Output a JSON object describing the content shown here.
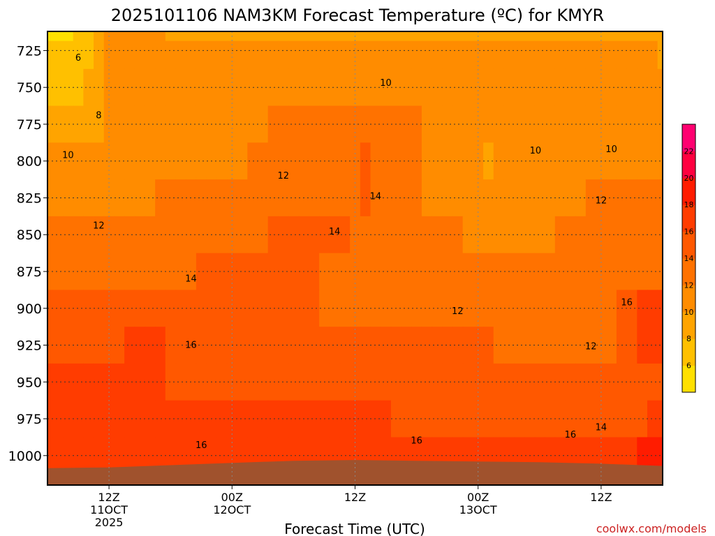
{
  "chart_data": {
    "type": "heatmap",
    "title": "2025101106 NAM3KM Forecast Temperature (ºC) for KMYR",
    "xlabel": "Forecast Time (UTC)",
    "ylabel": "",
    "credit": "coolwx.com/models",
    "y_axis": {
      "unit": "hPa",
      "ticks": [
        725,
        750,
        775,
        800,
        825,
        850,
        875,
        900,
        925,
        950,
        975,
        1000
      ],
      "tick_labels": [
        "725",
        "750",
        "775",
        "800",
        "825",
        "850",
        "875",
        "900",
        "925",
        "950",
        "975",
        "1000"
      ],
      "range": [
        712,
        1020
      ]
    },
    "x_axis": {
      "unit": "hours since 2025-10-11 06Z",
      "range": [
        0,
        60
      ],
      "ticks": [
        {
          "h": 6,
          "lines": [
            "12Z",
            "11OCT",
            "2025"
          ]
        },
        {
          "h": 18,
          "lines": [
            "00Z",
            "12OCT"
          ]
        },
        {
          "h": 30,
          "lines": [
            "12Z"
          ]
        },
        {
          "h": 42,
          "lines": [
            "00Z",
            "13OCT"
          ]
        },
        {
          "h": 54,
          "lines": [
            "12Z"
          ]
        }
      ]
    },
    "grid": true,
    "color_scale": {
      "levels": [
        4,
        6,
        8,
        10,
        12,
        14,
        16,
        18,
        20,
        22,
        24
      ],
      "tick_labels": [
        "6",
        "8",
        "10",
        "12",
        "14",
        "16",
        "18",
        "20",
        "22"
      ],
      "colors": [
        "#ffe000",
        "#ffc000",
        "#ffa400",
        "#ff8c00",
        "#ff7200",
        "#ff5800",
        "#ff3c00",
        "#ff1c00",
        "#ff0040",
        "#ff0070"
      ]
    },
    "values_note": "",
    "rows": [
      {
        "p": 712,
        "t": [
          5,
          5,
          5,
          6,
          7,
          9,
          10,
          10,
          10,
          10,
          10,
          10,
          9,
          9,
          9,
          9,
          9,
          9,
          9,
          9,
          9,
          9,
          9,
          9,
          9,
          9,
          9,
          9,
          9,
          9,
          9,
          9,
          9,
          9,
          9,
          9,
          9,
          9,
          9,
          9,
          9,
          9,
          9,
          9,
          9,
          9,
          9,
          9,
          9,
          9,
          9,
          9,
          9,
          9,
          9,
          9,
          9,
          9,
          9,
          9,
          8
        ]
      },
      {
        "p": 725,
        "t": [
          6,
          6,
          6,
          6,
          7,
          9,
          10,
          10,
          10,
          10,
          10,
          10,
          10,
          10,
          10,
          10,
          10,
          10,
          10,
          10,
          10,
          10,
          10,
          10,
          10,
          10,
          10,
          10,
          10,
          10,
          10,
          10,
          10,
          10,
          10,
          10,
          10,
          10,
          10,
          10,
          10,
          10,
          10,
          10,
          10,
          10,
          10,
          10,
          10,
          10,
          10,
          10,
          10,
          10,
          10,
          10,
          10,
          10,
          10,
          10,
          9
        ]
      },
      {
        "p": 750,
        "t": [
          7,
          7,
          7,
          7,
          8,
          9,
          10,
          10,
          10,
          10,
          10,
          10,
          10,
          10,
          10,
          10,
          10,
          10,
          10,
          10,
          10,
          11,
          11,
          11,
          11,
          11,
          11,
          11,
          11,
          11,
          11,
          11,
          11,
          11,
          11,
          11,
          10,
          10,
          10,
          10,
          10,
          10,
          10,
          10,
          10,
          10,
          10,
          10,
          10,
          10,
          10,
          10,
          10,
          10,
          10,
          10,
          10,
          10,
          10,
          10,
          10
        ]
      },
      {
        "p": 775,
        "t": [
          9,
          9,
          9,
          9,
          9,
          9,
          10,
          10,
          10,
          11,
          11,
          11,
          11,
          11,
          11,
          11,
          11,
          11,
          11,
          11,
          11,
          11,
          12,
          12,
          12,
          12,
          12,
          12,
          12,
          12,
          12,
          13,
          12,
          12,
          12,
          12,
          12,
          11,
          11,
          11,
          11,
          11,
          10,
          10,
          10,
          10,
          10,
          10,
          11,
          11,
          11,
          11,
          11,
          11,
          11,
          11,
          11,
          11,
          11,
          11,
          11
        ]
      },
      {
        "p": 800,
        "t": [
          10,
          10,
          10,
          10,
          10,
          10,
          10,
          10,
          10,
          11,
          11,
          11,
          11,
          11,
          11,
          11,
          11,
          11,
          11,
          11,
          12,
          12,
          12,
          12,
          12,
          12,
          12,
          12,
          12,
          12,
          13,
          14,
          13,
          13,
          12,
          12,
          12,
          11,
          11,
          11,
          11,
          11,
          10,
          9,
          10,
          10,
          10,
          11,
          11,
          11,
          11,
          11,
          11,
          11,
          10,
          11,
          11,
          11,
          11,
          11,
          11
        ]
      },
      {
        "p": 825,
        "t": [
          11,
          11,
          11,
          11,
          11,
          11,
          11,
          11,
          11,
          11,
          11,
          12,
          12,
          12,
          12,
          12,
          12,
          12,
          12,
          12,
          12,
          12,
          13,
          13,
          13,
          13,
          13,
          13,
          13,
          13,
          13,
          14,
          13,
          13,
          12,
          12,
          12,
          11,
          11,
          11,
          11,
          11,
          11,
          11,
          11,
          11,
          11,
          11,
          11,
          11,
          11,
          11,
          11,
          12,
          12,
          12,
          12,
          12,
          12,
          12,
          12
        ]
      },
      {
        "p": 850,
        "t": [
          12,
          12,
          12,
          12,
          12,
          12,
          12,
          12,
          12,
          12,
          12,
          12,
          12,
          13,
          13,
          13,
          13,
          13,
          13,
          13,
          13,
          13,
          14,
          14,
          14,
          14,
          14,
          14,
          14,
          14,
          13,
          13,
          13,
          13,
          13,
          13,
          12,
          12,
          12,
          12,
          12,
          11,
          11,
          11,
          11,
          11,
          11,
          11,
          11,
          11,
          12,
          12,
          12,
          12,
          12,
          12,
          12,
          12,
          12,
          12,
          12
        ]
      },
      {
        "p": 875,
        "t": [
          12,
          12,
          12,
          12,
          13,
          13,
          13,
          13,
          13,
          13,
          13,
          13,
          13,
          13,
          13,
          14,
          14,
          14,
          14,
          14,
          14,
          14,
          14,
          14,
          14,
          14,
          14,
          13,
          13,
          13,
          13,
          13,
          13,
          13,
          13,
          13,
          13,
          13,
          13,
          13,
          12,
          12,
          12,
          12,
          12,
          12,
          12,
          12,
          12,
          12,
          12,
          12,
          12,
          12,
          12,
          12,
          12,
          12,
          12,
          12,
          12
        ]
      },
      {
        "p": 900,
        "t": [
          14,
          14,
          14,
          14,
          14,
          14,
          14,
          14,
          14,
          14,
          14,
          14,
          14,
          14,
          14,
          14,
          14,
          14,
          14,
          14,
          14,
          14,
          14,
          14,
          14,
          14,
          14,
          13,
          13,
          13,
          13,
          13,
          13,
          13,
          13,
          13,
          13,
          13,
          13,
          13,
          12,
          12,
          12,
          12,
          12,
          12,
          12,
          12,
          12,
          12,
          12,
          12,
          12,
          12,
          12,
          12,
          14,
          15,
          16,
          16,
          16
        ]
      },
      {
        "p": 925,
        "t": [
          15,
          15,
          15,
          15,
          15,
          15,
          15,
          15,
          16,
          16,
          16,
          16,
          15,
          15,
          15,
          15,
          15,
          15,
          15,
          15,
          15,
          15,
          15,
          15,
          15,
          15,
          15,
          15,
          14,
          14,
          14,
          14,
          14,
          14,
          14,
          14,
          14,
          14,
          14,
          14,
          14,
          14,
          14,
          14,
          13,
          13,
          13,
          13,
          13,
          13,
          13,
          13,
          13,
          13,
          13,
          13,
          14,
          15,
          16,
          16,
          16
        ]
      },
      {
        "p": 950,
        "t": [
          16,
          16,
          16,
          16,
          16,
          16,
          16,
          16,
          16,
          16,
          16,
          16,
          15,
          15,
          15,
          15,
          15,
          15,
          15,
          15,
          15,
          15,
          15,
          15,
          15,
          15,
          15,
          15,
          15,
          15,
          15,
          15,
          15,
          15,
          15,
          15,
          15,
          15,
          15,
          15,
          15,
          15,
          14,
          14,
          14,
          14,
          14,
          14,
          14,
          14,
          14,
          14,
          14,
          14,
          14,
          14,
          15,
          15,
          15,
          15,
          15
        ]
      },
      {
        "p": 975,
        "t": [
          16,
          16,
          16,
          16,
          16,
          16,
          16,
          16,
          16,
          16,
          16,
          16,
          16,
          16,
          16,
          16,
          16,
          16,
          16,
          16,
          16,
          16,
          16,
          16,
          16,
          16,
          16,
          16,
          16,
          16,
          16,
          16,
          16,
          16,
          15,
          15,
          15,
          15,
          15,
          15,
          15,
          15,
          15,
          15,
          15,
          15,
          15,
          15,
          15,
          15,
          15,
          15,
          15,
          15,
          15,
          15,
          15,
          15,
          15,
          16,
          17
        ]
      },
      {
        "p": 1000,
        "t": [
          17,
          17,
          17,
          17,
          17,
          17,
          17,
          17,
          17,
          17,
          17,
          17,
          17,
          17,
          17,
          17,
          17,
          17,
          17,
          17,
          17,
          17,
          17,
          17,
          17,
          17,
          17,
          17,
          17,
          17,
          17,
          17,
          17,
          17,
          17,
          17,
          17,
          17,
          17,
          17,
          17,
          17,
          17,
          17,
          17,
          17,
          17,
          17,
          17,
          17,
          17,
          17,
          17,
          17,
          17,
          17,
          17,
          17,
          18,
          18,
          19
        ]
      },
      {
        "p": 1020,
        "t": [
          17,
          17,
          17,
          17,
          17,
          17,
          17,
          17,
          17,
          17,
          17,
          17,
          17,
          17,
          17,
          17,
          17,
          17,
          17,
          17,
          17,
          17,
          17,
          17,
          17,
          17,
          17,
          17,
          17,
          17,
          17,
          17,
          17,
          17,
          17,
          17,
          17,
          17,
          17,
          17,
          17,
          17,
          17,
          17,
          17,
          17,
          17,
          17,
          17,
          17,
          17,
          17,
          17,
          17,
          17,
          17,
          17,
          17,
          18,
          19,
          20
        ]
      }
    ],
    "contour_labels": [
      {
        "text": "6",
        "h": 3.0,
        "p": 730
      },
      {
        "text": "8",
        "h": 5.0,
        "p": 769
      },
      {
        "text": "10",
        "h": 2.0,
        "p": 796
      },
      {
        "text": "10",
        "h": 33.0,
        "p": 747
      },
      {
        "text": "10",
        "h": 47.6,
        "p": 793
      },
      {
        "text": "10",
        "h": 55.0,
        "p": 792
      },
      {
        "text": "12",
        "h": 5.0,
        "p": 844
      },
      {
        "text": "12",
        "h": 23.0,
        "p": 810
      },
      {
        "text": "12",
        "h": 54.0,
        "p": 827
      },
      {
        "text": "12",
        "h": 40.0,
        "p": 902
      },
      {
        "text": "12",
        "h": 53.0,
        "p": 926
      },
      {
        "text": "14",
        "h": 14.0,
        "p": 880
      },
      {
        "text": "14",
        "h": 28.0,
        "p": 848
      },
      {
        "text": "14",
        "h": 32.0,
        "p": 824
      },
      {
        "text": "14",
        "h": 54.0,
        "p": 981
      },
      {
        "text": "16",
        "h": 14.0,
        "p": 925
      },
      {
        "text": "16",
        "h": 15.0,
        "p": 993
      },
      {
        "text": "16",
        "h": 36.0,
        "p": 990
      },
      {
        "text": "16",
        "h": 51.0,
        "p": 986
      },
      {
        "text": "16",
        "h": 56.5,
        "p": 896
      }
    ],
    "terrain": {
      "color": "#a0522d",
      "surface_pressure": [
        {
          "h": 0,
          "p": 1008.5
        },
        {
          "h": 6,
          "p": 1008
        },
        {
          "h": 12,
          "p": 1006.5
        },
        {
          "h": 18,
          "p": 1005
        },
        {
          "h": 24,
          "p": 1003.5
        },
        {
          "h": 30,
          "p": 1003
        },
        {
          "h": 36,
          "p": 1003.5
        },
        {
          "h": 42,
          "p": 1004
        },
        {
          "h": 48,
          "p": 1004.5
        },
        {
          "h": 54,
          "p": 1005.5
        },
        {
          "h": 60,
          "p": 1007
        }
      ]
    }
  }
}
